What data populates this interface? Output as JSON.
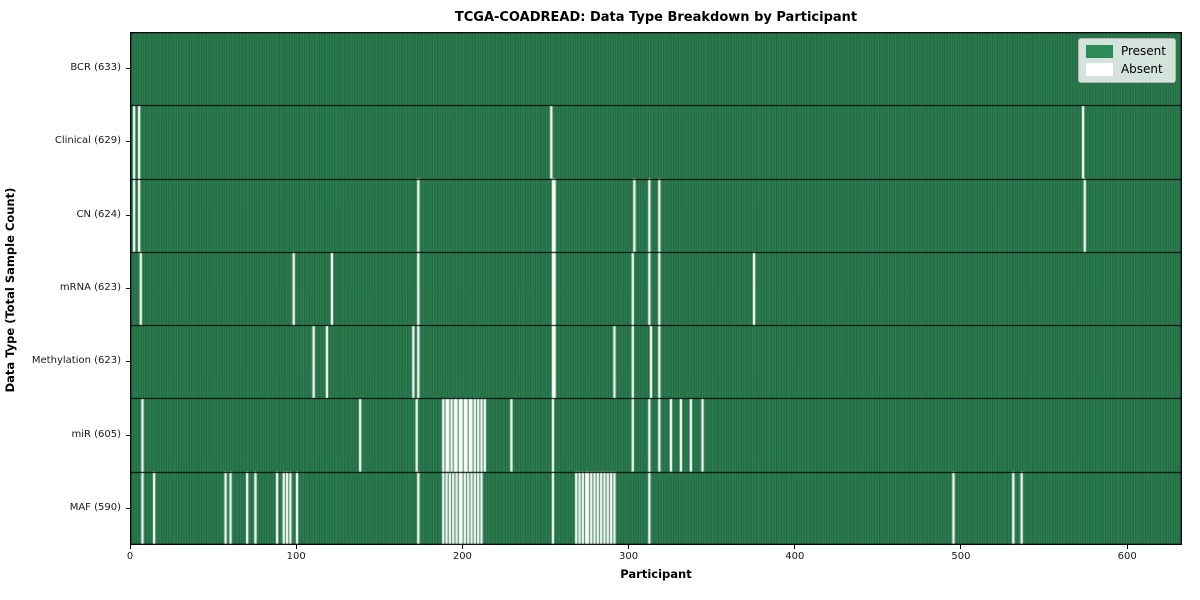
{
  "chart_data": {
    "type": "heatmap",
    "title": "TCGA-COADREAD: Data Type Breakdown by Participant",
    "xlabel": "Participant",
    "ylabel": "Data Type (Total Sample Count)",
    "x_axis": {
      "min": 0,
      "max": 633,
      "ticks": [
        0,
        100,
        200,
        300,
        400,
        500,
        600
      ]
    },
    "n_participants": 633,
    "grid": false,
    "legend": {
      "position": "upper right",
      "entries": [
        {
          "label": "Present",
          "color": "#2e8b57"
        },
        {
          "label": "Absent",
          "color": "#ffffff"
        }
      ]
    },
    "rows": [
      {
        "label": "BCR (633)",
        "data_type": "BCR",
        "present_count": 633,
        "absent_participants": []
      },
      {
        "label": "Clinical (629)",
        "data_type": "Clinical",
        "present_count": 629,
        "absent_participants": [
          2,
          5,
          253,
          573
        ]
      },
      {
        "label": "CN (624)",
        "data_type": "CN",
        "present_count": 624,
        "absent_participants": [
          2,
          5,
          173,
          254,
          255,
          303,
          312,
          318,
          574
        ]
      },
      {
        "label": "mRNA (623)",
        "data_type": "mRNA",
        "present_count": 623,
        "absent_participants": [
          6,
          98,
          121,
          173,
          254,
          255,
          302,
          312,
          318,
          375
        ]
      },
      {
        "label": "Methylation (623)",
        "data_type": "Methylation",
        "present_count": 623,
        "absent_participants": [
          110,
          118,
          170,
          173,
          254,
          255,
          291,
          302,
          313,
          318
        ]
      },
      {
        "label": "miR (605)",
        "data_type": "miR",
        "present_count": 605,
        "absent_participants": [
          7,
          138,
          172,
          188,
          190,
          191,
          193,
          195,
          196,
          198,
          199,
          201,
          202,
          204,
          205,
          207,
          209,
          211,
          213,
          229,
          254,
          302,
          312,
          318,
          325,
          331,
          337,
          344
        ]
      },
      {
        "label": "MAF (590)",
        "data_type": "MAF",
        "present_count": 590,
        "absent_participants": [
          7,
          14,
          57,
          60,
          70,
          75,
          88,
          92,
          94,
          96,
          100,
          173,
          188,
          190,
          192,
          194,
          196,
          198,
          199,
          201,
          203,
          205,
          207,
          209,
          211,
          254,
          268,
          270,
          272,
          274,
          275,
          277,
          279,
          281,
          283,
          285,
          287,
          289,
          291,
          312,
          495,
          531,
          536
        ]
      }
    ],
    "colors": {
      "present": "#2e8b57",
      "present_edge": "#10321f",
      "absent": "#ffffff",
      "row_separator": "#000000",
      "plot_border": "#000000",
      "figure_background": "#ffffff"
    }
  }
}
